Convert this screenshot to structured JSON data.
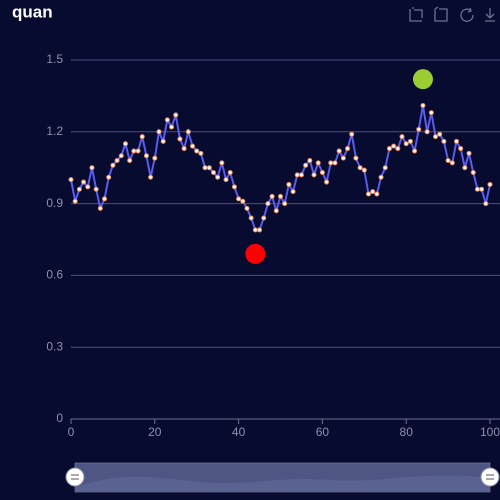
{
  "chart_data": {
    "type": "line",
    "title": "quan",
    "x": [
      0,
      1,
      2,
      3,
      4,
      5,
      6,
      7,
      8,
      9,
      10,
      11,
      12,
      13,
      14,
      15,
      16,
      17,
      18,
      19,
      20,
      21,
      22,
      23,
      24,
      25,
      26,
      27,
      28,
      29,
      30,
      31,
      32,
      33,
      34,
      35,
      36,
      37,
      38,
      39,
      40,
      41,
      42,
      43,
      44,
      45,
      46,
      47,
      48,
      49,
      50,
      51,
      52,
      53,
      54,
      55,
      56,
      57,
      58,
      59,
      60,
      61,
      62,
      63,
      64,
      65,
      66,
      67,
      68,
      69,
      70,
      71,
      72,
      73,
      74,
      75,
      76,
      77,
      78,
      79,
      80,
      81,
      82,
      83,
      84,
      85,
      86,
      87,
      88,
      89,
      90,
      91,
      92,
      93,
      94,
      95,
      96,
      97,
      98,
      99,
      100
    ],
    "series": [
      {
        "color": "#5a5cf0",
        "point_color": "#ffffff",
        "point_border": "#f08a5a",
        "values": [
          1.0,
          0.91,
          0.96,
          0.99,
          0.97,
          1.05,
          0.96,
          0.88,
          0.92,
          1.01,
          1.06,
          1.08,
          1.1,
          1.15,
          1.08,
          1.12,
          1.12,
          1.18,
          1.1,
          1.01,
          1.09,
          1.2,
          1.16,
          1.25,
          1.22,
          1.27,
          1.17,
          1.13,
          1.2,
          1.14,
          1.12,
          1.11,
          1.05,
          1.05,
          1.03,
          1.01,
          1.07,
          1.0,
          1.03,
          0.97,
          0.92,
          0.91,
          0.88,
          0.84,
          0.79,
          0.79,
          0.84,
          0.9,
          0.93,
          0.87,
          0.93,
          0.9,
          0.98,
          0.95,
          1.02,
          1.02,
          1.06,
          1.08,
          1.02,
          1.07,
          1.03,
          0.99,
          1.07,
          1.07,
          1.12,
          1.09,
          1.13,
          1.19,
          1.09,
          1.05,
          1.04,
          0.94,
          0.95,
          0.94,
          1.01,
          1.05,
          1.13,
          1.14,
          1.13,
          1.18,
          1.15,
          1.16,
          1.12,
          1.21,
          1.31,
          1.2,
          1.28,
          1.18,
          1.19,
          1.16,
          1.08,
          1.07,
          1.16,
          1.13,
          1.05,
          1.11,
          1.03,
          0.96,
          0.96,
          0.9,
          0.98
        ]
      }
    ],
    "markers": [
      {
        "x": 44,
        "y": 0.69,
        "color": "#ff0000"
      },
      {
        "x": 84,
        "y": 1.42,
        "color": "#9acd32"
      }
    ],
    "xlim": [
      0,
      100
    ],
    "xticks": [
      0,
      20,
      40,
      60,
      80,
      100
    ],
    "ylim": [
      0,
      1.5
    ],
    "yticks": [
      0,
      0.3,
      0.6,
      0.9,
      1.2,
      1.5
    ],
    "grid": true
  }
}
